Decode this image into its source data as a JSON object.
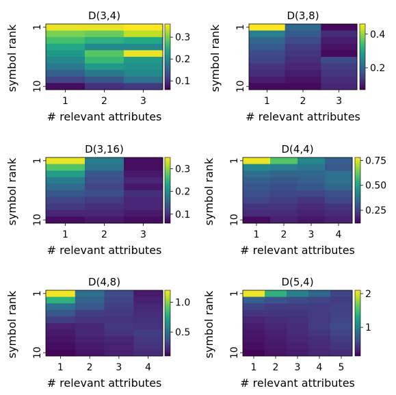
{
  "chart_data": [
    {
      "type": "heatmap",
      "title": "D(3,4)",
      "xlabel": "# relevant attributes",
      "ylabel": "symbol rank",
      "x_ticks": [
        "1",
        "2",
        "3"
      ],
      "y_ticks": [
        "1",
        "10"
      ],
      "colorbar": {
        "range": [
          0.06,
          0.36
        ],
        "ticks": [
          "0.1",
          "0.2",
          "0.3"
        ],
        "tick_values": [
          0.1,
          0.2,
          0.3
        ]
      },
      "values": [
        [
          0.35,
          0.35,
          0.36
        ],
        [
          0.3,
          0.29,
          0.33
        ],
        [
          0.27,
          0.25,
          0.24
        ],
        [
          0.24,
          0.2,
          0.2
        ],
        [
          0.22,
          0.28,
          0.35
        ],
        [
          0.2,
          0.26,
          0.22
        ],
        [
          0.18,
          0.22,
          0.21
        ],
        [
          0.15,
          0.18,
          0.2
        ],
        [
          0.12,
          0.14,
          0.17
        ],
        [
          0.07,
          0.1,
          0.11
        ]
      ]
    },
    {
      "type": "heatmap",
      "title": "D(3,8)",
      "xlabel": "# relevant attributes",
      "ylabel": "symbol rank",
      "x_ticks": [
        "1",
        "2",
        "3"
      ],
      "y_ticks": [
        "1",
        "10"
      ],
      "colorbar": {
        "range": [
          0.07,
          0.46
        ],
        "ticks": [
          "0.2",
          "0.4"
        ],
        "tick_values": [
          0.2,
          0.4
        ]
      },
      "values": [
        [
          0.46,
          0.2,
          0.08
        ],
        [
          0.24,
          0.18,
          0.12
        ],
        [
          0.2,
          0.16,
          0.1
        ],
        [
          0.18,
          0.14,
          0.09
        ],
        [
          0.16,
          0.13,
          0.08
        ],
        [
          0.15,
          0.12,
          0.16
        ],
        [
          0.13,
          0.11,
          0.14
        ],
        [
          0.12,
          0.1,
          0.13
        ],
        [
          0.1,
          0.09,
          0.12
        ],
        [
          0.08,
          0.08,
          0.11
        ]
      ]
    },
    {
      "type": "heatmap",
      "title": "D(3,16)",
      "xlabel": "# relevant attributes",
      "ylabel": "symbol rank",
      "x_ticks": [
        "1",
        "2",
        "3"
      ],
      "y_ticks": [
        "1",
        "10"
      ],
      "colorbar": {
        "range": [
          0.06,
          0.35
        ],
        "ticks": [
          "0.1",
          "0.2",
          "0.3"
        ],
        "tick_values": [
          0.1,
          0.2,
          0.3
        ]
      },
      "values": [
        [
          0.34,
          0.18,
          0.07
        ],
        [
          0.27,
          0.17,
          0.07
        ],
        [
          0.22,
          0.14,
          0.08
        ],
        [
          0.18,
          0.13,
          0.09
        ],
        [
          0.16,
          0.12,
          0.08
        ],
        [
          0.14,
          0.13,
          0.1
        ],
        [
          0.12,
          0.11,
          0.09
        ],
        [
          0.11,
          0.1,
          0.09
        ],
        [
          0.09,
          0.09,
          0.08
        ],
        [
          0.07,
          0.08,
          0.07
        ]
      ]
    },
    {
      "type": "heatmap",
      "title": "D(4,4)",
      "xlabel": "# relevant attributes",
      "ylabel": "symbol rank",
      "x_ticks": [
        "1",
        "2",
        "3",
        "4"
      ],
      "y_ticks": [
        "1",
        "10"
      ],
      "colorbar": {
        "range": [
          0.12,
          0.78
        ],
        "ticks": [
          "0.25",
          "0.50",
          "0.75"
        ],
        "tick_values": [
          0.25,
          0.5,
          0.75
        ]
      },
      "values": [
        [
          0.76,
          0.6,
          0.42,
          0.32
        ],
        [
          0.42,
          0.4,
          0.38,
          0.3
        ],
        [
          0.36,
          0.34,
          0.34,
          0.36
        ],
        [
          0.32,
          0.3,
          0.32,
          0.36
        ],
        [
          0.3,
          0.28,
          0.3,
          0.34
        ],
        [
          0.28,
          0.26,
          0.26,
          0.28
        ],
        [
          0.26,
          0.24,
          0.22,
          0.26
        ],
        [
          0.22,
          0.22,
          0.2,
          0.22
        ],
        [
          0.2,
          0.2,
          0.18,
          0.2
        ],
        [
          0.14,
          0.18,
          0.16,
          0.18
        ]
      ]
    },
    {
      "type": "heatmap",
      "title": "D(4,8)",
      "xlabel": "# relevant attributes",
      "ylabel": "symbol rank",
      "x_ticks": [
        "1",
        "2",
        "3",
        "4"
      ],
      "y_ticks": [
        "1",
        "10"
      ],
      "colorbar": {
        "range": [
          0.1,
          1.2
        ],
        "ticks": [
          "0.5",
          "1.0"
        ],
        "tick_values": [
          0.5,
          1.0
        ]
      },
      "values": [
        [
          1.18,
          0.5,
          0.35,
          0.18
        ],
        [
          0.8,
          0.45,
          0.32,
          0.2
        ],
        [
          0.5,
          0.4,
          0.3,
          0.22
        ],
        [
          0.4,
          0.3,
          0.28,
          0.24
        ],
        [
          0.3,
          0.26,
          0.26,
          0.25
        ],
        [
          0.2,
          0.22,
          0.28,
          0.26
        ],
        [
          0.18,
          0.22,
          0.26,
          0.3
        ],
        [
          0.16,
          0.2,
          0.22,
          0.28
        ],
        [
          0.14,
          0.18,
          0.2,
          0.26
        ],
        [
          0.12,
          0.16,
          0.2,
          0.24
        ]
      ]
    },
    {
      "type": "heatmap",
      "title": "D(5,4)",
      "xlabel": "# relevant attributes",
      "ylabel": "symbol rank",
      "x_ticks": [
        "1",
        "2",
        "3",
        "4",
        "5"
      ],
      "y_ticks": [
        "1",
        "10"
      ],
      "colorbar": {
        "range": [
          0.15,
          2.1
        ],
        "ticks": [
          "1",
          "2"
        ],
        "tick_values": [
          1,
          2
        ]
      },
      "values": [
        [
          2.05,
          1.4,
          1.0,
          0.8,
          0.55
        ],
        [
          0.75,
          0.65,
          0.6,
          0.55,
          0.5
        ],
        [
          0.55,
          0.5,
          0.5,
          0.5,
          0.52
        ],
        [
          0.45,
          0.45,
          0.45,
          0.48,
          0.52
        ],
        [
          0.35,
          0.4,
          0.42,
          0.48,
          0.55
        ],
        [
          0.3,
          0.35,
          0.4,
          0.5,
          0.6
        ],
        [
          0.28,
          0.32,
          0.38,
          0.45,
          0.55
        ],
        [
          0.25,
          0.3,
          0.35,
          0.4,
          0.5
        ],
        [
          0.22,
          0.28,
          0.32,
          0.38,
          0.45
        ],
        [
          0.18,
          0.25,
          0.3,
          0.35,
          0.4
        ]
      ]
    }
  ]
}
